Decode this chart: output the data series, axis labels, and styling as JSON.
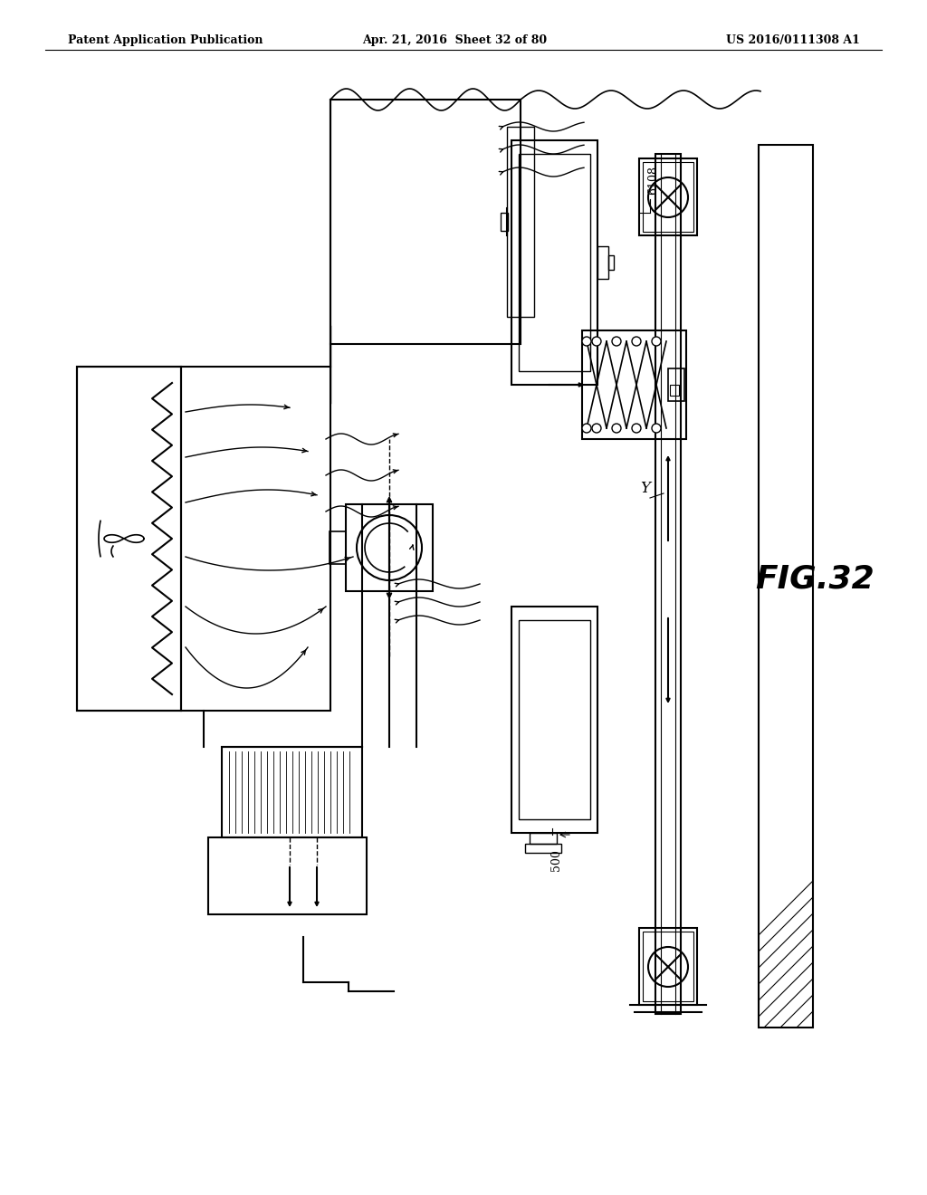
{
  "bg_color": "#ffffff",
  "line_color": "#000000",
  "fig_label": "FIG.32",
  "header_left": "Patent Application Publication",
  "header_center": "Apr. 21, 2016  Sheet 32 of 80",
  "header_right": "US 2016/0111308 A1",
  "label_6108": "6108",
  "label_500": "500",
  "label_Y": "Y"
}
